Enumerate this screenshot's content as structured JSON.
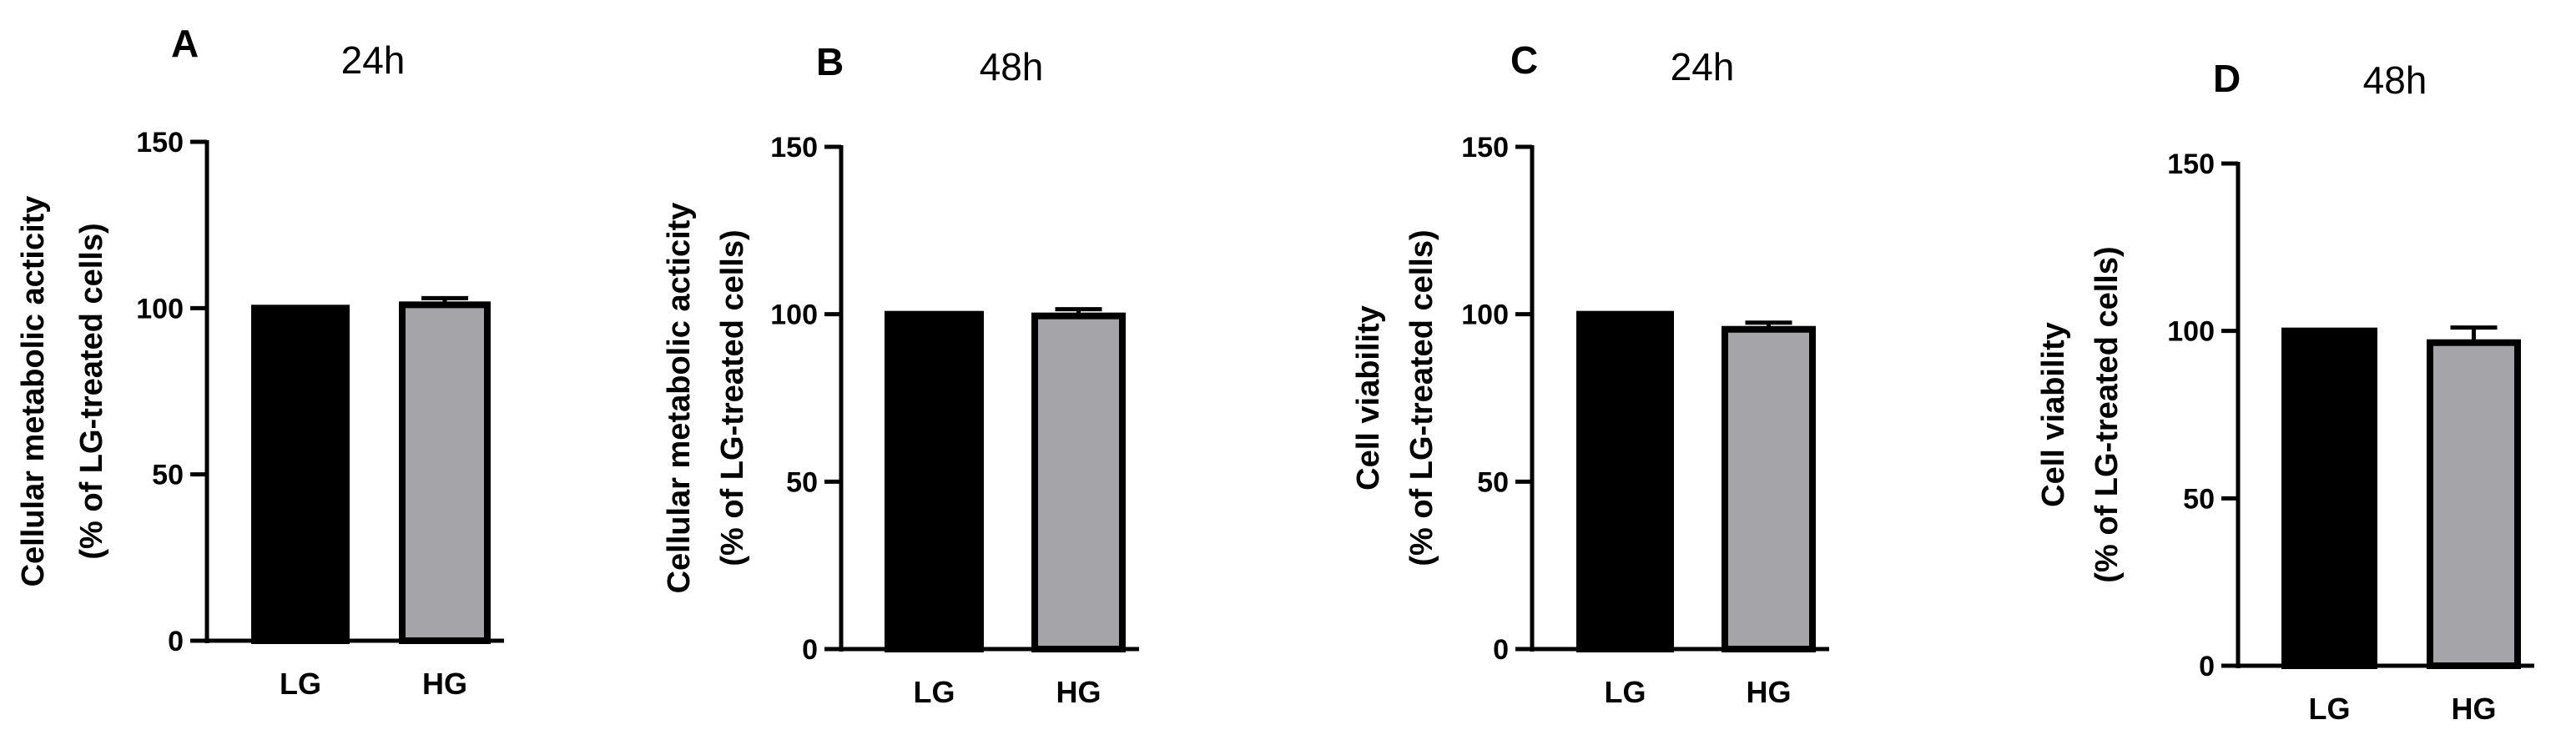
{
  "figure": {
    "background": "#ffffff"
  },
  "chart_data": [
    {
      "panel": "A",
      "title": "24h",
      "type": "bar",
      "ylabel": [
        "Cellular metabolic acticity",
        "(% of LG-treated cells)"
      ],
      "xlabel": "",
      "categories": [
        "LG",
        "HG"
      ],
      "values": [
        100,
        101
      ],
      "errors": [
        0,
        2
      ],
      "colors": [
        "#000000",
        "#a5a4a9"
      ],
      "ylim": [
        0,
        150
      ],
      "yticks": [
        0,
        50,
        100,
        150
      ],
      "grid": false
    },
    {
      "panel": "B",
      "title": "48h",
      "type": "bar",
      "ylabel": [
        "Cellular metabolic acticity",
        "(% of LG-treated cells)"
      ],
      "xlabel": "",
      "categories": [
        "LG",
        "HG"
      ],
      "values": [
        100,
        99.5
      ],
      "errors": [
        0,
        2
      ],
      "colors": [
        "#000000",
        "#a5a4a9"
      ],
      "ylim": [
        0,
        150
      ],
      "yticks": [
        0,
        50,
        100,
        150
      ],
      "grid": false
    },
    {
      "panel": "C",
      "title": "24h",
      "type": "bar",
      "ylabel": [
        "Cell viability",
        "(% of LG-treated cells)"
      ],
      "xlabel": "",
      "categories": [
        "LG",
        "HG"
      ],
      "values": [
        100,
        95.5
      ],
      "errors": [
        0,
        2
      ],
      "colors": [
        "#000000",
        "#a5a4a9"
      ],
      "ylim": [
        0,
        150
      ],
      "yticks": [
        0,
        50,
        100,
        150
      ],
      "grid": false
    },
    {
      "panel": "D",
      "title": "48h",
      "type": "bar",
      "ylabel": [
        "Cell viability",
        "(% of LG-treated cells)"
      ],
      "xlabel": "",
      "categories": [
        "LG",
        "HG"
      ],
      "values": [
        100,
        96.5
      ],
      "errors": [
        0,
        4.5
      ],
      "colors": [
        "#000000",
        "#a5a4a9"
      ],
      "ylim": [
        0,
        150
      ],
      "yticks": [
        0,
        50,
        100,
        150
      ],
      "grid": false
    }
  ]
}
